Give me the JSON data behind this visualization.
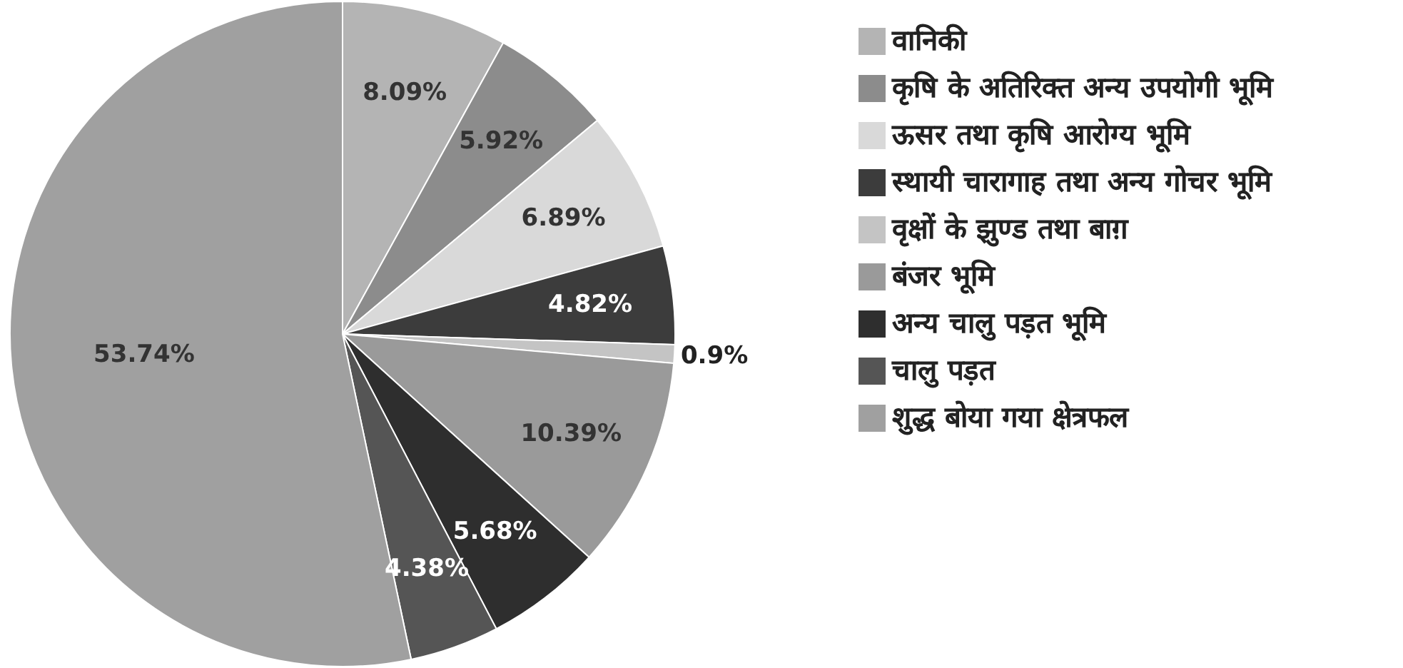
{
  "chart_data": {
    "type": "pie",
    "categories": [
      "वानिकी",
      "कृषि के अतिरिक्त अन्य उपयोगी भूमि",
      "ऊसर तथा कृषि आरोग्य भूमि",
      "स्थायी चारागाह तथा अन्य गोचर भूमि",
      "वृक्षों के झुण्ड तथा बाग़",
      "बंजर भूमि",
      "अन्य चालु पड़त भूमि",
      "चालु पड़त",
      "शुद्ध बोया गया क्षेत्रफल"
    ],
    "values": [
      8.09,
      5.92,
      6.89,
      4.82,
      0.9,
      10.39,
      5.68,
      4.38,
      53.74
    ],
    "colors": [
      "#b4b4b4",
      "#8c8c8c",
      "#d9d9d9",
      "#3c3c3c",
      "#c4c4c4",
      "#9a9a9a",
      "#2e2e2e",
      "#555555",
      "#a0a0a0"
    ],
    "value_labels": [
      "8.09%",
      "5.92%",
      "6.89%",
      "4.82%",
      "0.9%",
      "10.39%",
      "5.68%",
      "4.38%",
      "53.74%"
    ],
    "legend": "right"
  }
}
